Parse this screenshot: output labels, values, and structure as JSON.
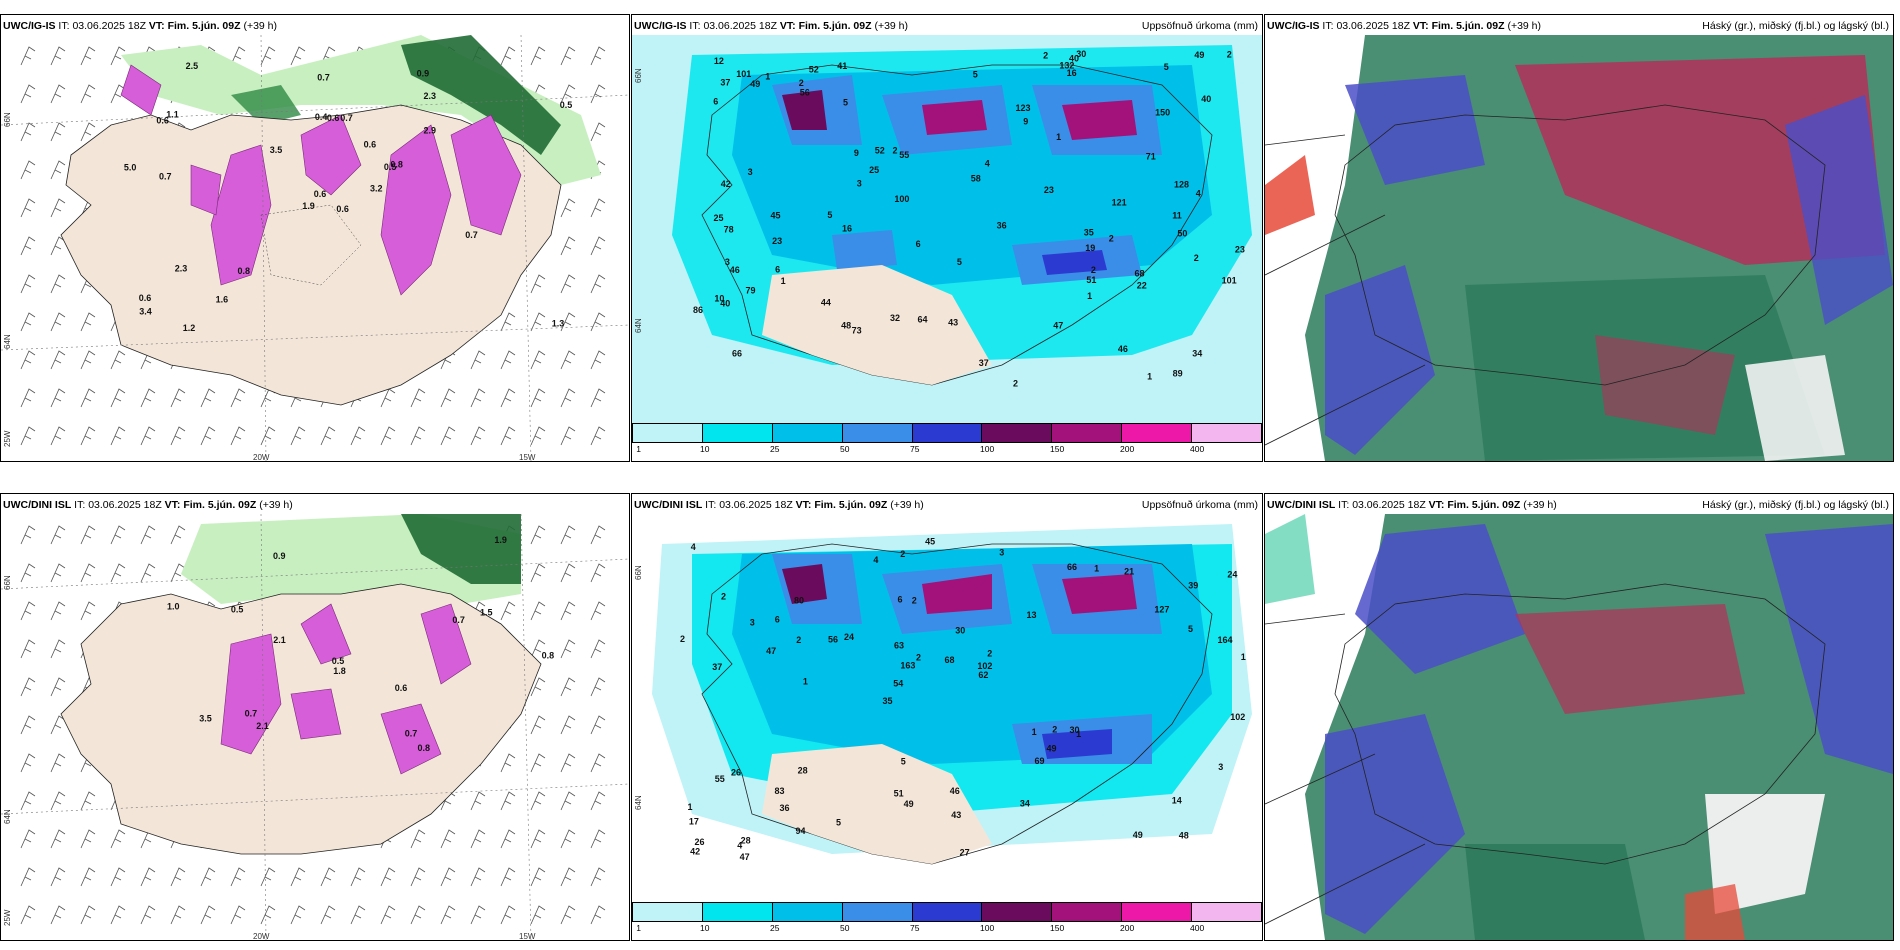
{
  "rows": [
    {
      "left": {
        "model": "UWC/IG-IS",
        "it_label": "IT:",
        "it_value": "03.06.2025 18Z",
        "vt_label": "VT:",
        "vt_value": "Fim. 5.jún. 09Z",
        "lead": "(+39 h)",
        "lat_labels": [
          "66N",
          "64N"
        ],
        "lon_labels": [
          "20W",
          "15W"
        ],
        "side_label": "25W",
        "numbers": [
          "0.6",
          "0.6",
          "0.6",
          "0.6",
          "0.5",
          "0.8",
          "0.9",
          "0.7",
          "2.3",
          "3.2",
          "2.5",
          "1.3",
          "0.7",
          "0.5",
          "1.9",
          "2.9",
          "1.2",
          "0.4",
          "0.6",
          "2.3",
          "3.5",
          "3.4",
          "1.6",
          "0.6",
          "0.8",
          "0.7",
          "1.1",
          "0.7",
          "5.0"
        ]
      },
      "center": {
        "model": "UWC/IG-IS",
        "it_label": "IT:",
        "it_value": "03.06.2025 18Z",
        "vt_label": "VT:",
        "vt_value": "Fim. 5.jún. 09Z",
        "lead": "(+39 h)",
        "right_title": "Uppsöfnuð úrkoma (mm)",
        "lat_labels": [
          "66N",
          "64N"
        ],
        "numbers": [
          "19",
          "50",
          "66",
          "52",
          "55",
          "46",
          "40",
          "16",
          "9",
          "2",
          "6",
          "25",
          "37",
          "34",
          "32",
          "4",
          "5",
          "36",
          "2",
          "1",
          "2",
          "5",
          "3",
          "2",
          "2",
          "2",
          "2",
          "78",
          "56",
          "121",
          "37",
          "47",
          "25",
          "16",
          "11",
          "22",
          "51",
          "45",
          "43",
          "79",
          "40",
          "30",
          "89",
          "64",
          "68",
          "44",
          "86",
          "101",
          "23",
          "42",
          "23",
          "52",
          "49",
          "35",
          "1",
          "1",
          "1",
          "12",
          "23",
          "1",
          "2",
          "5",
          "4",
          "3",
          "5",
          "3",
          "6",
          "6",
          "5",
          "10",
          "9",
          "41",
          "100",
          "49",
          "58",
          "40",
          "46",
          "48",
          "73",
          "150",
          "101",
          "123",
          "132",
          "71",
          "128"
        ]
      },
      "right": {
        "model": "UWC/IG-IS",
        "it_label": "IT:",
        "it_value": "03.06.2025 18Z",
        "vt_label": "VT:",
        "vt_value": "Fim. 5.jún. 09Z",
        "lead": "(+39 h)",
        "right_title": "Háský (gr.), miðský (fj.bl.) og lágský (bl.)"
      }
    },
    {
      "left": {
        "model": "UWC/DINI ISL",
        "it_label": "IT:",
        "it_value": "03.06.2025 18Z",
        "vt_label": "VT:",
        "vt_value": "Fim. 5.jún. 09Z",
        "lead": "(+39 h)",
        "lat_labels": [
          "66N",
          "64N"
        ],
        "lon_labels": [
          "20W",
          "15W"
        ],
        "side_label": "25W",
        "numbers": [
          "0.8",
          "0.9",
          "0.7",
          "0.5",
          "1.5",
          "0.7",
          "0.8",
          "2.1",
          "1.8",
          "2.1",
          "3.5",
          "1.0",
          "0.5",
          "0.6",
          "0.7",
          "1.9"
        ]
      },
      "center": {
        "model": "UWC/DINI ISL",
        "it_label": "IT:",
        "it_value": "03.06.2025 18Z",
        "vt_label": "VT:",
        "vt_value": "Fim. 5.jún. 09Z",
        "lead": "(+39 h)",
        "right_title": "Uppsöfnuð úrkoma (mm)",
        "lat_labels": [
          "66N",
          "64N"
        ],
        "numbers": [
          "48",
          "37",
          "39",
          "35",
          "13",
          "28",
          "6",
          "30",
          "26",
          "24",
          "17",
          "36",
          "2",
          "2",
          "1",
          "2",
          "2",
          "1",
          "1",
          "5",
          "54",
          "51",
          "163",
          "80",
          "66",
          "28",
          "49",
          "14",
          "30",
          "27",
          "56",
          "47",
          "69",
          "94",
          "164",
          "102",
          "26",
          "49",
          "62",
          "55",
          "127",
          "24",
          "49",
          "34",
          "83",
          "47",
          "42",
          "46",
          "21",
          "45",
          "1",
          "2",
          "6",
          "1",
          "4",
          "3",
          "4",
          "2",
          "3",
          "5",
          "5",
          "2",
          "2",
          "1",
          "4",
          "3",
          "102",
          "63",
          "43",
          "68"
        ]
      },
      "right": {
        "model": "UWC/DINI ISL",
        "it_label": "IT:",
        "it_value": "03.06.2025 18Z",
        "vt_label": "VT:",
        "vt_value": "Fim. 5.jún. 09Z",
        "lead": "(+39 h)",
        "right_title": "Háský (gr.), miðský (fj.bl.) og lágský (bl.)"
      }
    }
  ],
  "colorbar": {
    "ticks": [
      "1",
      "10",
      "25",
      "50",
      "75",
      "100",
      "150",
      "200",
      "400"
    ],
    "colors": [
      "#bff3f7",
      "#00e5ee",
      "#00c0ea",
      "#3a8ee8",
      "#2b3bd1",
      "#6a0b5e",
      "#a2127a",
      "#ee18a8",
      "#f3b6ef"
    ]
  },
  "palette": {
    "land": "#f3e6d8",
    "sea_precip_light": "#bff3f7",
    "green_light": "#c8efc0",
    "green_dark": "#1f6b34",
    "magenta": "#d65ed8",
    "cloud_high": "#2a7a5a",
    "cloud_mid": "#b3305a",
    "cloud_low": "#4a4fc8"
  }
}
